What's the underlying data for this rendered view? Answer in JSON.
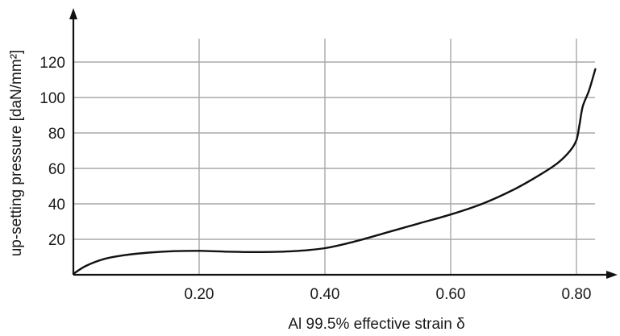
{
  "chart_data": {
    "type": "line",
    "xlabel": "Al 99.5% effective strain δ",
    "ylabel": "up-setting pressure [daN/mm²]",
    "xlim": [
      0,
      0.84
    ],
    "ylim": [
      0,
      135
    ],
    "xticks": [
      0.2,
      0.4,
      0.6,
      0.8
    ],
    "xtick_labels": [
      "0.20",
      "0.40",
      "0.60",
      "0.80"
    ],
    "yticks": [
      20,
      40,
      60,
      80,
      100,
      120
    ],
    "ytick_labels": [
      "20",
      "40",
      "60",
      "80",
      "100",
      "120"
    ],
    "grid": true,
    "series": [
      {
        "x": [
          0.0,
          0.02,
          0.05,
          0.08,
          0.12,
          0.16,
          0.2,
          0.25,
          0.3,
          0.35,
          0.4,
          0.45,
          0.5,
          0.55,
          0.6,
          0.65,
          0.7,
          0.74,
          0.77,
          0.79,
          0.8,
          0.805,
          0.81,
          0.82,
          0.83
        ],
        "y": [
          0.5,
          5,
          9,
          11,
          12.5,
          13.3,
          13.5,
          13,
          12.8,
          13.3,
          15,
          19,
          24,
          29,
          34,
          40,
          48,
          56,
          63,
          70,
          76,
          85,
          95,
          104,
          116
        ]
      }
    ],
    "colors": {
      "line": "#111111",
      "grid": "#a9a9a9",
      "axis": "#111111"
    }
  }
}
